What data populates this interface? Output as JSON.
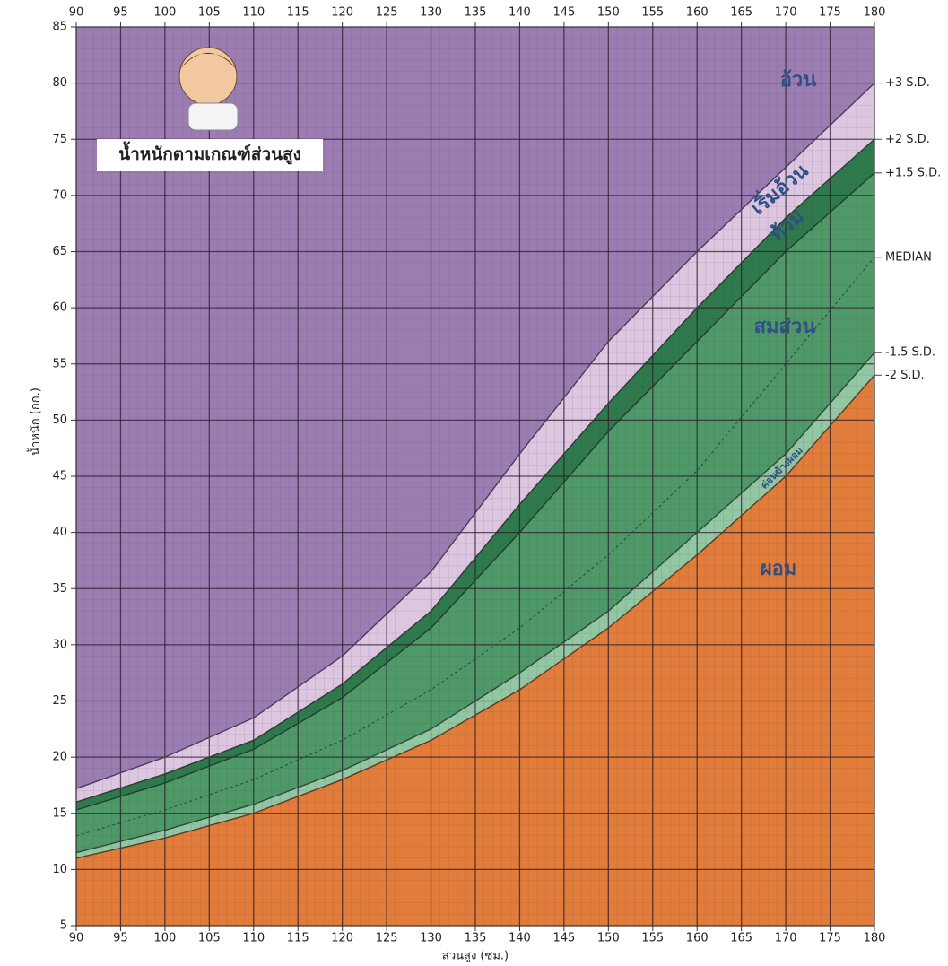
{
  "chart_data": {
    "type": "band-line",
    "title": "น้ำหนักตามเกณฑ์ส่วนสูง",
    "x_label": "ส่วนสูง (ซม.)",
    "y_label": "น้ำหนัก (กก.)",
    "x": [
      90,
      100,
      110,
      120,
      130,
      140,
      150,
      160,
      170,
      180
    ],
    "series": [
      {
        "name": "+3 S.D.",
        "color": "#4a3a5a",
        "style": "solid",
        "values": [
          17.2,
          20,
          23.5,
          29,
          36.5,
          47,
          57,
          65,
          72.5,
          80
        ]
      },
      {
        "name": "+2 S.D.",
        "color": "#2c3b33",
        "style": "solid",
        "values": [
          16,
          18.5,
          21.5,
          26.5,
          33,
          42.5,
          51.5,
          60,
          68,
          75
        ]
      },
      {
        "name": "+1.5 S.D.",
        "color": "#1f3f2c",
        "style": "solid",
        "values": [
          15.3,
          17.7,
          20.7,
          25.3,
          31.5,
          40,
          49,
          57,
          65,
          72
        ]
      },
      {
        "name": "MEDIAN",
        "color": "#1f4a33",
        "style": "dashed",
        "values": [
          13,
          15.3,
          18,
          21.5,
          26,
          31.5,
          38,
          45.5,
          55,
          64.5
        ]
      },
      {
        "name": "-1.5 S.D.",
        "color": "#2a4a36",
        "style": "solid",
        "values": [
          11.5,
          13.5,
          15.8,
          18.8,
          22.5,
          27.5,
          33,
          40,
          47,
          56
        ]
      },
      {
        "name": "-2 S.D.",
        "color": "#5a3a20",
        "style": "solid",
        "values": [
          11,
          12.8,
          15,
          18,
          21.5,
          26,
          31.5,
          38,
          45,
          54
        ]
      }
    ],
    "bands": [
      {
        "name": "อ้วน",
        "color": "#9c7db2"
      },
      {
        "name": "เริ่มอ้วน",
        "color": "#dcc6e0"
      },
      {
        "name": "ท้วม",
        "color": "#2f7a4c"
      },
      {
        "name": "สมส่วน",
        "color": "#4f9868"
      },
      {
        "name": "ค่อนข้างผอม",
        "color": "#93c6a3"
      },
      {
        "name": "ผอม",
        "color": "#e17c3b"
      }
    ],
    "xlim": [
      90,
      180
    ],
    "ylim": [
      5,
      85
    ],
    "xticks": [
      90,
      95,
      100,
      105,
      110,
      115,
      120,
      125,
      130,
      135,
      140,
      145,
      150,
      155,
      160,
      165,
      170,
      175,
      180
    ],
    "yticks": [
      5,
      10,
      15,
      20,
      25,
      30,
      35,
      40,
      45,
      50,
      55,
      60,
      65,
      70,
      75,
      80,
      85
    ],
    "grid": true
  }
}
